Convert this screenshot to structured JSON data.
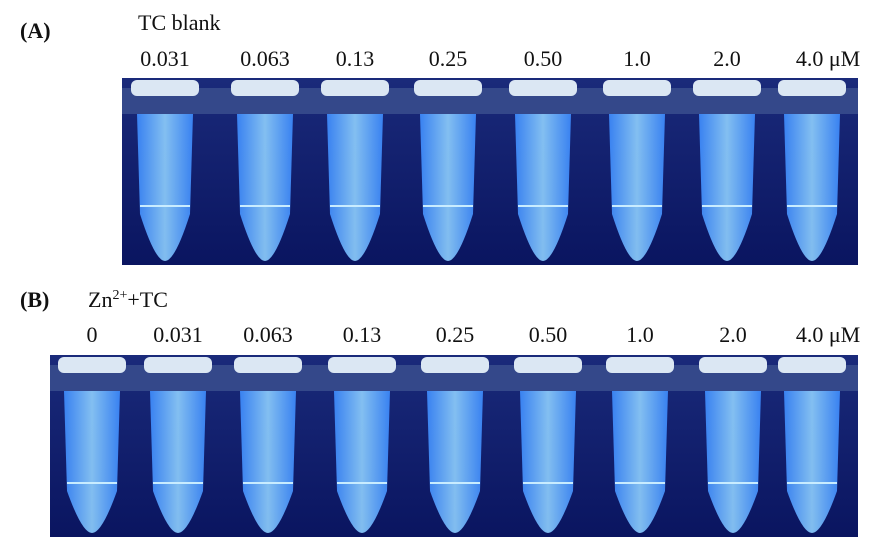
{
  "panels": [
    {
      "label": "(A)",
      "title": [
        "TC blank"
      ],
      "concentrations": [
        "0.031",
        "0.063",
        "0.13",
        "0.25",
        "0.50",
        "1.0",
        "2.0",
        "4.0 μM"
      ]
    },
    {
      "label": "(B)",
      "title": [
        "Zn",
        "2+",
        "+TC"
      ],
      "concentrations": [
        "0",
        "0.031",
        "0.063",
        "0.13",
        "0.25",
        "0.50",
        "1.0",
        "2.0",
        "4.0 μM"
      ]
    }
  ]
}
